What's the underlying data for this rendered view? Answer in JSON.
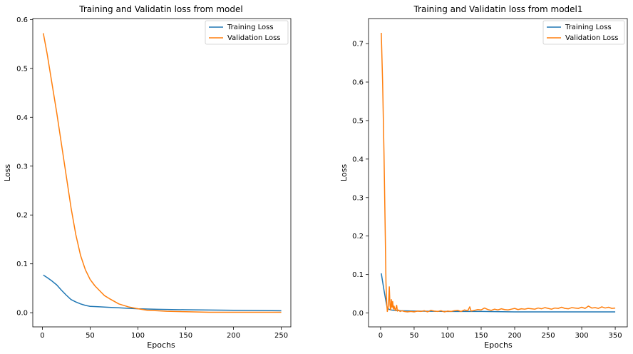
{
  "chart_data": [
    {
      "type": "line",
      "title": "Training and Validatin loss from model",
      "xlabel": "Epochs",
      "ylabel": "Loss",
      "xlim": [
        -10,
        260
      ],
      "ylim": [
        -0.029,
        0.602
      ],
      "xticks": [
        0,
        50,
        100,
        150,
        200,
        250
      ],
      "yticks": [
        0.0,
        0.1,
        0.2,
        0.3,
        0.4,
        0.5,
        0.6
      ],
      "xtick_labels": [
        "0",
        "50",
        "100",
        "150",
        "200",
        "250"
      ],
      "ytick_labels": [
        "0.0",
        "0.1",
        "0.2",
        "0.3",
        "0.4",
        "0.5",
        "0.6"
      ],
      "legend_position": "top-right",
      "series": [
        {
          "name": "Training Loss",
          "color": "#1f77b4",
          "x": [
            1,
            5,
            10,
            15,
            20,
            25,
            30,
            35,
            40,
            45,
            50,
            60,
            70,
            80,
            90,
            100,
            120,
            150,
            200,
            250
          ],
          "y": [
            0.077,
            0.072,
            0.065,
            0.057,
            0.046,
            0.036,
            0.027,
            0.022,
            0.018,
            0.015,
            0.013,
            0.012,
            0.011,
            0.01,
            0.009,
            0.008,
            0.007,
            0.006,
            0.005,
            0.004
          ]
        },
        {
          "name": "Validation Loss",
          "color": "#ff7f0e",
          "x": [
            1,
            5,
            10,
            15,
            20,
            25,
            30,
            35,
            40,
            45,
            50,
            55,
            60,
            65,
            70,
            80,
            90,
            100,
            110,
            120,
            130,
            150,
            175,
            200,
            250
          ],
          "y": [
            0.572,
            0.53,
            0.47,
            0.41,
            0.345,
            0.28,
            0.215,
            0.16,
            0.117,
            0.088,
            0.068,
            0.055,
            0.045,
            0.035,
            0.029,
            0.018,
            0.012,
            0.008,
            0.005,
            0.004,
            0.003,
            0.002,
            0.001,
            0.001,
            0.001
          ]
        }
      ]
    },
    {
      "type": "line",
      "title": "Training and Validatin loss from model1",
      "xlabel": "Epochs",
      "ylabel": "Loss",
      "xlim": [
        -18,
        368
      ],
      "ylim": [
        -0.036,
        0.765
      ],
      "xticks": [
        0,
        50,
        100,
        150,
        200,
        250,
        300,
        350
      ],
      "yticks": [
        0.0,
        0.1,
        0.2,
        0.3,
        0.4,
        0.5,
        0.6,
        0.7
      ],
      "xtick_labels": [
        "0",
        "50",
        "100",
        "150",
        "200",
        "250",
        "300",
        "350"
      ],
      "ytick_labels": [
        "0.0",
        "0.1",
        "0.2",
        "0.3",
        "0.4",
        "0.5",
        "0.6",
        "0.7"
      ],
      "legend_position": "top-right",
      "series": [
        {
          "name": "Training Loss",
          "color": "#1f77b4",
          "x": [
            1,
            5,
            8,
            10,
            15,
            20,
            30,
            50,
            100,
            150,
            200,
            250,
            300,
            350
          ],
          "y": [
            0.103,
            0.06,
            0.03,
            0.012,
            0.008,
            0.007,
            0.006,
            0.005,
            0.004,
            0.004,
            0.003,
            0.003,
            0.003,
            0.003
          ]
        },
        {
          "name": "Validation Loss",
          "color": "#ff7f0e",
          "x": [
            1,
            3,
            5,
            7,
            8,
            9,
            10,
            11,
            12,
            13,
            14,
            15,
            16,
            17,
            18,
            19,
            20,
            22,
            24,
            25,
            27,
            29,
            32,
            35,
            40,
            45,
            50,
            55,
            60,
            65,
            70,
            75,
            80,
            85,
            90,
            95,
            100,
            105,
            110,
            115,
            120,
            125,
            130,
            133,
            135,
            140,
            145,
            150,
            155,
            160,
            165,
            170,
            175,
            180,
            185,
            190,
            195,
            200,
            205,
            210,
            215,
            220,
            225,
            230,
            235,
            240,
            245,
            250,
            255,
            260,
            265,
            270,
            275,
            280,
            285,
            290,
            295,
            300,
            305,
            310,
            315,
            320,
            325,
            330,
            335,
            340,
            345,
            350
          ],
          "y": [
            0.728,
            0.6,
            0.42,
            0.2,
            0.08,
            0.03,
            0.004,
            0.01,
            0.03,
            0.068,
            0.02,
            0.008,
            0.035,
            0.015,
            0.03,
            0.01,
            0.018,
            0.006,
            0.02,
            0.005,
            0.008,
            0.004,
            0.006,
            0.004,
            0.003,
            0.004,
            0.003,
            0.005,
            0.004,
            0.006,
            0.003,
            0.007,
            0.005,
            0.004,
            0.006,
            0.003,
            0.005,
            0.004,
            0.006,
            0.007,
            0.004,
            0.008,
            0.006,
            0.016,
            0.005,
            0.007,
            0.009,
            0.008,
            0.013,
            0.009,
            0.007,
            0.01,
            0.008,
            0.011,
            0.009,
            0.008,
            0.01,
            0.012,
            0.009,
            0.011,
            0.01,
            0.012,
            0.011,
            0.01,
            0.013,
            0.011,
            0.014,
            0.012,
            0.01,
            0.013,
            0.012,
            0.015,
            0.012,
            0.011,
            0.014,
            0.013,
            0.012,
            0.015,
            0.012,
            0.018,
            0.013,
            0.014,
            0.012,
            0.016,
            0.013,
            0.015,
            0.012,
            0.013
          ]
        }
      ]
    }
  ]
}
